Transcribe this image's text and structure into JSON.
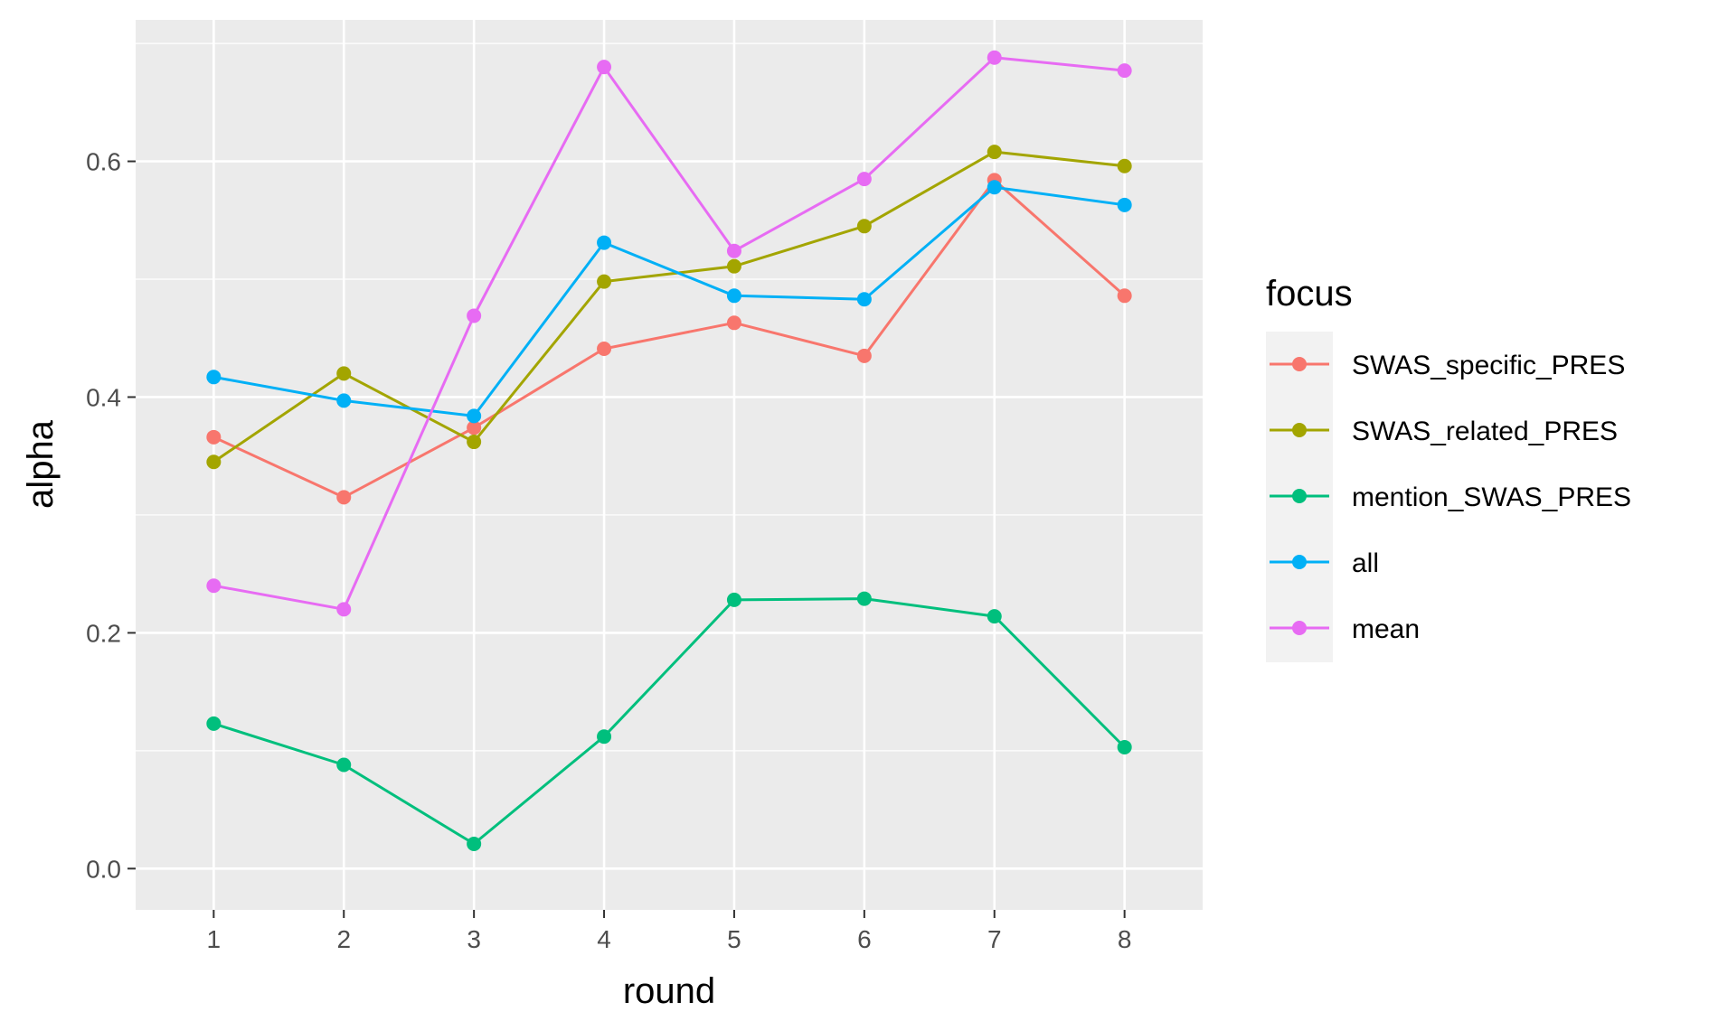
{
  "chart_data": {
    "type": "line",
    "xlabel": "round",
    "ylabel": "alpha",
    "x": [
      1,
      2,
      3,
      4,
      5,
      6,
      7,
      8
    ],
    "xlim": [
      0.4,
      8.6
    ],
    "ylim": [
      -0.035,
      0.72
    ],
    "x_ticks": [
      "1",
      "2",
      "3",
      "4",
      "5",
      "6",
      "7",
      "8"
    ],
    "y_ticks": [
      "0.0",
      "0.2",
      "0.4",
      "0.6"
    ],
    "y_tick_values": [
      0.0,
      0.2,
      0.4,
      0.6
    ],
    "grid": true,
    "legend": {
      "title": "focus",
      "position": "right"
    },
    "series": [
      {
        "name": "SWAS_specific_PRES",
        "color": "#F8766D",
        "values": [
          0.366,
          0.315,
          0.374,
          0.441,
          0.463,
          0.435,
          0.584,
          0.486
        ]
      },
      {
        "name": "SWAS_related_PRES",
        "color": "#A3A500",
        "values": [
          0.345,
          0.42,
          0.362,
          0.498,
          0.511,
          0.545,
          0.608,
          0.596
        ]
      },
      {
        "name": "mention_SWAS_PRES",
        "color": "#00BF7D",
        "values": [
          0.123,
          0.088,
          0.021,
          0.112,
          0.228,
          0.229,
          0.214,
          0.103
        ]
      },
      {
        "name": "all",
        "color": "#00B0F6",
        "values": [
          0.417,
          0.397,
          0.384,
          0.531,
          0.486,
          0.483,
          0.578,
          0.563
        ]
      },
      {
        "name": "mean",
        "color": "#E76BF3",
        "values": [
          0.24,
          0.22,
          0.469,
          0.68,
          0.524,
          0.585,
          0.688,
          0.677
        ]
      }
    ]
  }
}
